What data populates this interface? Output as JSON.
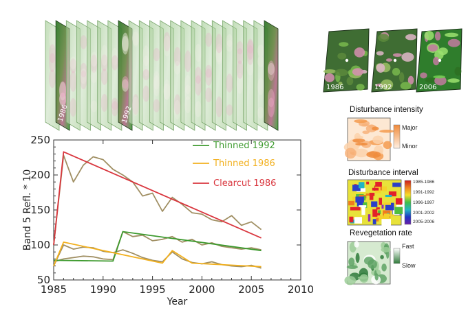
{
  "chart_data": {
    "type": "line",
    "xlabel": "Year",
    "ylabel": "Band 5 Refl. * 10",
    "xlim": [
      1985,
      2010
    ],
    "ylim": [
      50,
      250
    ],
    "xticks": [
      1985,
      1990,
      1995,
      2000,
      2005,
      2010
    ],
    "yticks": [
      50,
      100,
      150,
      200,
      250
    ],
    "legend_position": "top-right",
    "colors": {
      "observed": "#a08f63",
      "thinned_1992": "#3d9a2e",
      "thinned_1986": "#f2b01e",
      "clearcut_1986": "#d9363e"
    },
    "series": [
      {
        "name": "Thinned 1992",
        "color": "#3d9a2e",
        "observed": [
          [
            1985,
            76
          ],
          [
            1986,
            80
          ],
          [
            1987,
            82
          ],
          [
            1988,
            84
          ],
          [
            1989,
            83
          ],
          [
            1990,
            80
          ],
          [
            1991,
            79
          ],
          [
            1992,
            119
          ],
          [
            1993,
            112
          ],
          [
            1994,
            114
          ],
          [
            1995,
            106
          ],
          [
            1996,
            108
          ],
          [
            1997,
            112
          ],
          [
            1998,
            104
          ],
          [
            1999,
            108
          ],
          [
            2000,
            100
          ],
          [
            2001,
            103
          ],
          [
            2002,
            98
          ],
          [
            2003,
            96
          ],
          [
            2004,
            94
          ],
          [
            2005,
            96
          ],
          [
            2006,
            93
          ]
        ],
        "fitted": [
          [
            1985,
            78
          ],
          [
            1991,
            77
          ],
          [
            1992,
            119
          ],
          [
            2006,
            92
          ]
        ]
      },
      {
        "name": "Thinned 1986",
        "color": "#f2b01e",
        "observed": [
          [
            1985,
            70
          ],
          [
            1986,
            100
          ],
          [
            1987,
            94
          ],
          [
            1988,
            97
          ],
          [
            1989,
            96
          ],
          [
            1990,
            91
          ],
          [
            1991,
            89
          ],
          [
            1992,
            93
          ],
          [
            1993,
            88
          ],
          [
            1994,
            82
          ],
          [
            1995,
            78
          ],
          [
            1996,
            76
          ],
          [
            1997,
            90
          ],
          [
            1998,
            80
          ],
          [
            1999,
            75
          ],
          [
            2000,
            73
          ],
          [
            2001,
            76
          ],
          [
            2002,
            72
          ],
          [
            2003,
            70
          ],
          [
            2004,
            69
          ],
          [
            2005,
            71
          ],
          [
            2006,
            67
          ]
        ],
        "fitted": [
          [
            1985,
            70
          ],
          [
            1986,
            104
          ],
          [
            1996,
            74
          ],
          [
            1997,
            92
          ],
          [
            1999,
            74
          ],
          [
            2006,
            69
          ]
        ]
      },
      {
        "name": "Clearcut 1986",
        "color": "#d9363e",
        "observed": [
          [
            1985,
            100
          ],
          [
            1986,
            228
          ],
          [
            1987,
            190
          ],
          [
            1988,
            214
          ],
          [
            1989,
            226
          ],
          [
            1990,
            222
          ],
          [
            1991,
            208
          ],
          [
            1992,
            200
          ],
          [
            1993,
            190
          ],
          [
            1994,
            170
          ],
          [
            1995,
            174
          ],
          [
            1996,
            148
          ],
          [
            1997,
            168
          ],
          [
            1998,
            158
          ],
          [
            1999,
            146
          ],
          [
            2000,
            144
          ],
          [
            2001,
            136
          ],
          [
            2002,
            133
          ],
          [
            2003,
            142
          ],
          [
            2004,
            128
          ],
          [
            2005,
            133
          ],
          [
            2006,
            122
          ]
        ],
        "fitted": [
          [
            1985,
            100
          ],
          [
            1986,
            233
          ],
          [
            2006,
            110
          ]
        ]
      }
    ]
  },
  "image_stack": {
    "frame_years": [
      "1986",
      "1992"
    ]
  },
  "thumbnails": {
    "years": [
      "1986",
      "1992",
      "2006"
    ]
  },
  "panels": {
    "intensity": {
      "title": "Disturbance intensity",
      "high": "Major",
      "low": "Minor"
    },
    "interval": {
      "title": "Disturbance interval",
      "labels": [
        "1985-1986",
        "1991-1992",
        "1996-1997",
        "2001-2002",
        "2005-2006"
      ]
    },
    "revegetation": {
      "title": "Revegetation rate",
      "high": "Fast",
      "low": "Slow"
    }
  }
}
